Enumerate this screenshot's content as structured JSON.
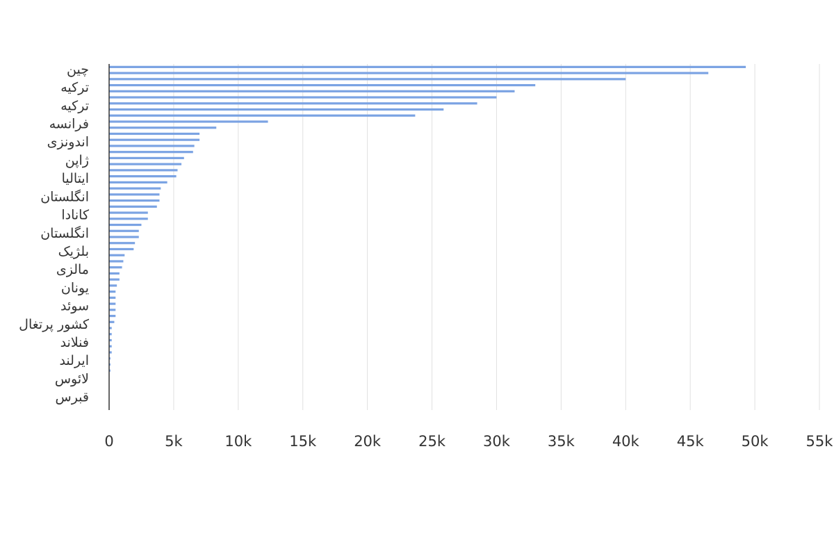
{
  "chart_data": {
    "type": "barh",
    "color": "#7ba3e3",
    "grid": true,
    "categories": [
      "چین",
      null,
      null,
      "ترکیه",
      null,
      null,
      "ترکیه",
      null,
      null,
      "فرانسه",
      null,
      null,
      "اندونزی",
      null,
      null,
      "ژاپن",
      null,
      null,
      "ایتالیا",
      null,
      null,
      "انگلستان",
      null,
      null,
      "کانادا",
      null,
      null,
      "انگلستان",
      null,
      null,
      "بلژیک",
      null,
      null,
      "مالزی",
      null,
      null,
      "یونان",
      null,
      null,
      "سوئد",
      null,
      null,
      "کشور پرتغال",
      null,
      null,
      "فنلاند",
      null,
      null,
      "ایرلند",
      null,
      null,
      "لائوس",
      null,
      null,
      "قبرس",
      null,
      null
    ],
    "values": [
      49300,
      46400,
      40000,
      33000,
      31400,
      30000,
      28500,
      25900,
      23700,
      12300,
      8300,
      7000,
      7000,
      6600,
      6500,
      5800,
      5600,
      5300,
      5200,
      4500,
      4000,
      3900,
      3900,
      3700,
      3000,
      3000,
      2500,
      2300,
      2300,
      2000,
      1900,
      1200,
      1100,
      1000,
      800,
      800,
      600,
      500,
      500,
      500,
      500,
      500,
      400,
      200,
      200,
      200,
      200,
      200,
      100,
      100,
      100,
      0,
      0,
      0,
      0,
      0,
      0
    ],
    "xlim": [
      0,
      55000
    ],
    "xticks": [
      0,
      {
        "value": 5000,
        "label": "5k"
      },
      {
        "value": 10000,
        "label": "10k"
      },
      {
        "value": 15000,
        "label": "15k"
      },
      {
        "value": 20000,
        "label": "20k"
      },
      {
        "value": 25000,
        "label": "25k"
      },
      {
        "value": 30000,
        "label": "30k"
      },
      {
        "value": 35000,
        "label": "35k"
      },
      {
        "value": 40000,
        "label": "40k"
      },
      {
        "value": 45000,
        "label": "45k"
      },
      {
        "value": 50000,
        "label": "50k"
      },
      {
        "value": 55000,
        "label": "55k"
      }
    ]
  }
}
